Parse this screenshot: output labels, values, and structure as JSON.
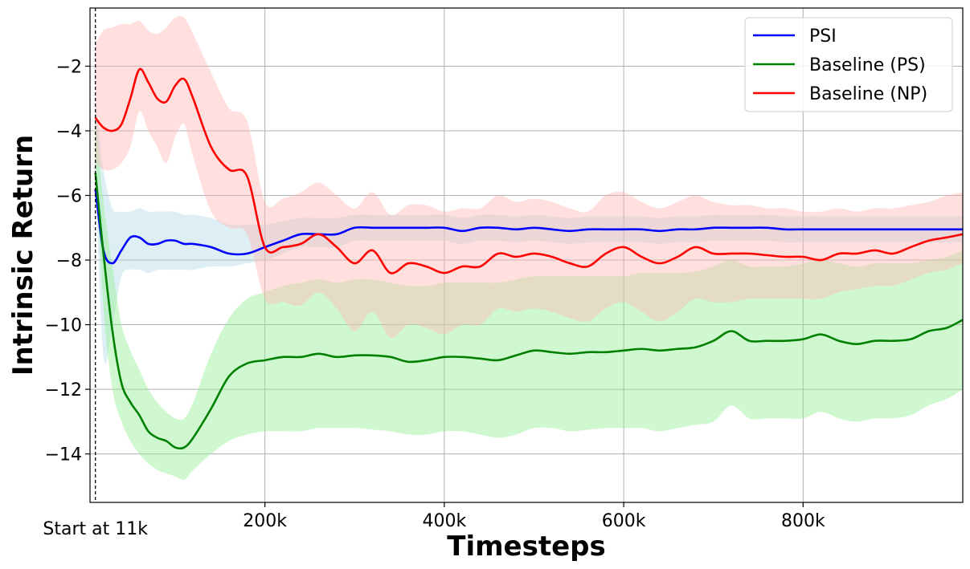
{
  "chart_data": {
    "type": "line",
    "title": "",
    "xlabel": "Timesteps",
    "ylabel": "Intrinsic Return",
    "xlim": [
      5000,
      978000
    ],
    "ylim": [
      -15.5,
      -0.2
    ],
    "yticks": [
      -2,
      -4,
      -6,
      -8,
      -10,
      -12,
      -14
    ],
    "ytick_labels": [
      "−2",
      "−4",
      "−6",
      "−8",
      "−10",
      "−12",
      "−14"
    ],
    "xticks": [
      200000,
      400000,
      600000,
      800000
    ],
    "xtick_labels": [
      "200k",
      "400k",
      "600k",
      "800k"
    ],
    "grid": true,
    "legend_position": "top-right",
    "annotation": {
      "x": 11000,
      "label": "Start at 11k",
      "style": "dashed vertical line"
    },
    "x": [
      11000,
      20000,
      30000,
      40000,
      50000,
      60000,
      70000,
      80000,
      90000,
      100000,
      110000,
      120000,
      140000,
      160000,
      180000,
      200000,
      220000,
      240000,
      260000,
      280000,
      300000,
      320000,
      340000,
      360000,
      380000,
      400000,
      420000,
      440000,
      460000,
      480000,
      500000,
      520000,
      540000,
      560000,
      580000,
      600000,
      620000,
      640000,
      660000,
      680000,
      700000,
      720000,
      740000,
      760000,
      780000,
      800000,
      820000,
      840000,
      860000,
      880000,
      900000,
      920000,
      940000,
      960000,
      978000
    ],
    "series": [
      {
        "name": "PSI",
        "color": "#0000ff",
        "band_color": "#add8e6",
        "values": [
          -5.8,
          -7.7,
          -8.1,
          -7.7,
          -7.3,
          -7.3,
          -7.5,
          -7.5,
          -7.4,
          -7.4,
          -7.5,
          -7.5,
          -7.6,
          -7.8,
          -7.8,
          -7.6,
          -7.4,
          -7.2,
          -7.2,
          -7.2,
          -7.0,
          -7.0,
          -7.0,
          -7.0,
          -7.0,
          -7.0,
          -7.1,
          -7.0,
          -7.0,
          -7.05,
          -7.0,
          -7.05,
          -7.1,
          -7.05,
          -7.05,
          -7.05,
          -7.05,
          -7.1,
          -7.05,
          -7.05,
          -7.0,
          -7.0,
          -7.0,
          -7.0,
          -7.05,
          -7.05,
          -7.05,
          -7.05,
          -7.05,
          -7.05,
          -7.05,
          -7.05,
          -7.05,
          -7.05,
          -7.05
        ],
        "lower": [
          -5.5,
          -11.0,
          -10.0,
          -8.5,
          -8.3,
          -8.3,
          -8.4,
          -8.3,
          -8.3,
          -8.3,
          -8.3,
          -8.3,
          -8.2,
          -8.2,
          -8.1,
          -8.0,
          -7.8,
          -7.6,
          -7.6,
          -7.6,
          -7.4,
          -7.4,
          -7.4,
          -7.4,
          -7.4,
          -7.4,
          -7.5,
          -7.4,
          -7.4,
          -7.45,
          -7.4,
          -7.45,
          -7.5,
          -7.45,
          -7.45,
          -7.45,
          -7.45,
          -7.5,
          -7.45,
          -7.45,
          -7.4,
          -7.4,
          -7.4,
          -7.4,
          -7.45,
          -7.45,
          -7.45,
          -7.45,
          -7.45,
          -7.45,
          -7.45,
          -7.45,
          -7.45,
          -7.45,
          -7.45
        ],
        "upper": [
          -3.0,
          -5.2,
          -6.4,
          -6.5,
          -6.5,
          -6.4,
          -6.5,
          -6.5,
          -6.5,
          -6.5,
          -6.6,
          -6.6,
          -6.7,
          -6.9,
          -6.9,
          -6.9,
          -6.8,
          -6.7,
          -6.7,
          -6.7,
          -6.6,
          -6.6,
          -6.6,
          -6.6,
          -6.6,
          -6.6,
          -6.7,
          -6.6,
          -6.6,
          -6.65,
          -6.6,
          -6.65,
          -6.7,
          -6.65,
          -6.65,
          -6.65,
          -6.65,
          -6.7,
          -6.65,
          -6.65,
          -6.6,
          -6.6,
          -6.6,
          -6.6,
          -6.65,
          -6.65,
          -6.65,
          -6.65,
          -6.65,
          -6.65,
          -6.65,
          -6.65,
          -6.65,
          -6.65,
          -6.65
        ]
      },
      {
        "name": "Baseline (PS)",
        "color": "#008000",
        "band_color": "#90ee90",
        "values": [
          -5.3,
          -7.8,
          -10.2,
          -11.8,
          -12.4,
          -12.8,
          -13.3,
          -13.5,
          -13.6,
          -13.8,
          -13.8,
          -13.5,
          -12.6,
          -11.6,
          -11.2,
          -11.1,
          -11.0,
          -11.0,
          -10.9,
          -11.0,
          -10.95,
          -10.95,
          -11.0,
          -11.15,
          -11.1,
          -11.0,
          -11.0,
          -11.05,
          -11.1,
          -10.95,
          -10.8,
          -10.85,
          -10.9,
          -10.85,
          -10.85,
          -10.8,
          -10.75,
          -10.8,
          -10.75,
          -10.7,
          -10.5,
          -10.2,
          -10.5,
          -10.5,
          -10.5,
          -10.45,
          -10.3,
          -10.5,
          -10.6,
          -10.5,
          -10.5,
          -10.45,
          -10.2,
          -10.1,
          -9.85
        ],
        "lower": [
          -5.0,
          -9.5,
          -12.0,
          -13.0,
          -13.6,
          -14.0,
          -14.3,
          -14.5,
          -14.6,
          -14.7,
          -14.8,
          -14.5,
          -14.0,
          -13.6,
          -13.4,
          -13.3,
          -13.3,
          -13.3,
          -13.2,
          -13.2,
          -13.2,
          -13.25,
          -13.3,
          -13.4,
          -13.4,
          -13.3,
          -13.3,
          -13.4,
          -13.5,
          -13.4,
          -13.2,
          -13.2,
          -13.3,
          -13.25,
          -13.2,
          -13.2,
          -13.2,
          -13.3,
          -13.2,
          -13.1,
          -13.0,
          -12.5,
          -12.9,
          -12.9,
          -12.9,
          -12.9,
          -12.7,
          -12.9,
          -13.0,
          -12.9,
          -12.9,
          -12.8,
          -12.5,
          -12.3,
          -12.0
        ],
        "upper": [
          -3.5,
          -6.2,
          -8.2,
          -10.0,
          -10.8,
          -11.4,
          -12.0,
          -12.4,
          -12.7,
          -12.9,
          -12.9,
          -12.4,
          -10.9,
          -9.8,
          -9.2,
          -9.0,
          -8.8,
          -8.7,
          -8.6,
          -8.7,
          -8.6,
          -8.6,
          -8.7,
          -8.8,
          -8.8,
          -8.7,
          -8.7,
          -8.7,
          -8.7,
          -8.6,
          -8.5,
          -8.5,
          -8.5,
          -8.5,
          -8.5,
          -8.5,
          -8.4,
          -8.4,
          -8.4,
          -8.35,
          -8.2,
          -8.0,
          -8.2,
          -8.2,
          -8.2,
          -8.1,
          -8.0,
          -8.1,
          -8.2,
          -8.1,
          -8.1,
          -8.1,
          -8.0,
          -7.9,
          -7.7
        ]
      },
      {
        "name": "Baseline (NP)",
        "color": "#ff0000",
        "band_color": "#ffb6b0",
        "values": [
          -3.6,
          -3.9,
          -4.0,
          -3.8,
          -3.0,
          -2.1,
          -2.5,
          -3.0,
          -3.1,
          -2.6,
          -2.4,
          -3.0,
          -4.5,
          -5.2,
          -5.4,
          -7.6,
          -7.6,
          -7.5,
          -7.2,
          -7.6,
          -8.1,
          -7.7,
          -8.4,
          -8.1,
          -8.2,
          -8.4,
          -8.2,
          -8.2,
          -7.8,
          -7.9,
          -7.8,
          -7.9,
          -8.1,
          -8.2,
          -7.8,
          -7.6,
          -7.9,
          -8.1,
          -7.9,
          -7.6,
          -7.8,
          -7.8,
          -7.8,
          -7.85,
          -7.9,
          -7.9,
          -8.0,
          -7.8,
          -7.8,
          -7.7,
          -7.8,
          -7.6,
          -7.4,
          -7.3,
          -7.2
        ],
        "lower": [
          -5.0,
          -5.2,
          -5.2,
          -5.0,
          -4.5,
          -3.4,
          -4.0,
          -4.5,
          -5.0,
          -4.2,
          -3.8,
          -4.8,
          -6.5,
          -7.0,
          -7.2,
          -9.2,
          -9.3,
          -9.4,
          -9.0,
          -9.5,
          -10.2,
          -9.6,
          -10.4,
          -10.0,
          -10.1,
          -10.3,
          -10.0,
          -10.0,
          -9.5,
          -9.6,
          -9.5,
          -9.6,
          -9.8,
          -9.9,
          -9.5,
          -9.3,
          -9.6,
          -9.9,
          -9.6,
          -9.2,
          -9.3,
          -9.3,
          -9.2,
          -9.2,
          -9.2,
          -9.2,
          -9.2,
          -9.0,
          -8.9,
          -8.8,
          -8.8,
          -8.6,
          -8.4,
          -8.3,
          -8.1
        ],
        "upper": [
          -1.3,
          -0.9,
          -0.8,
          -0.7,
          -0.7,
          -0.6,
          -0.9,
          -1.0,
          -0.8,
          -0.5,
          -0.5,
          -1.0,
          -2.2,
          -3.3,
          -3.7,
          -6.2,
          -6.1,
          -5.9,
          -5.6,
          -6.0,
          -6.4,
          -5.9,
          -6.6,
          -6.3,
          -6.3,
          -6.5,
          -6.4,
          -6.4,
          -6.0,
          -6.2,
          -6.1,
          -6.2,
          -6.4,
          -6.5,
          -6.0,
          -5.9,
          -6.2,
          -6.4,
          -6.2,
          -6.0,
          -6.2,
          -6.3,
          -6.3,
          -6.4,
          -6.4,
          -6.5,
          -6.5,
          -6.4,
          -6.5,
          -6.4,
          -6.4,
          -6.3,
          -6.2,
          -6.0,
          -5.9
        ]
      }
    ]
  }
}
